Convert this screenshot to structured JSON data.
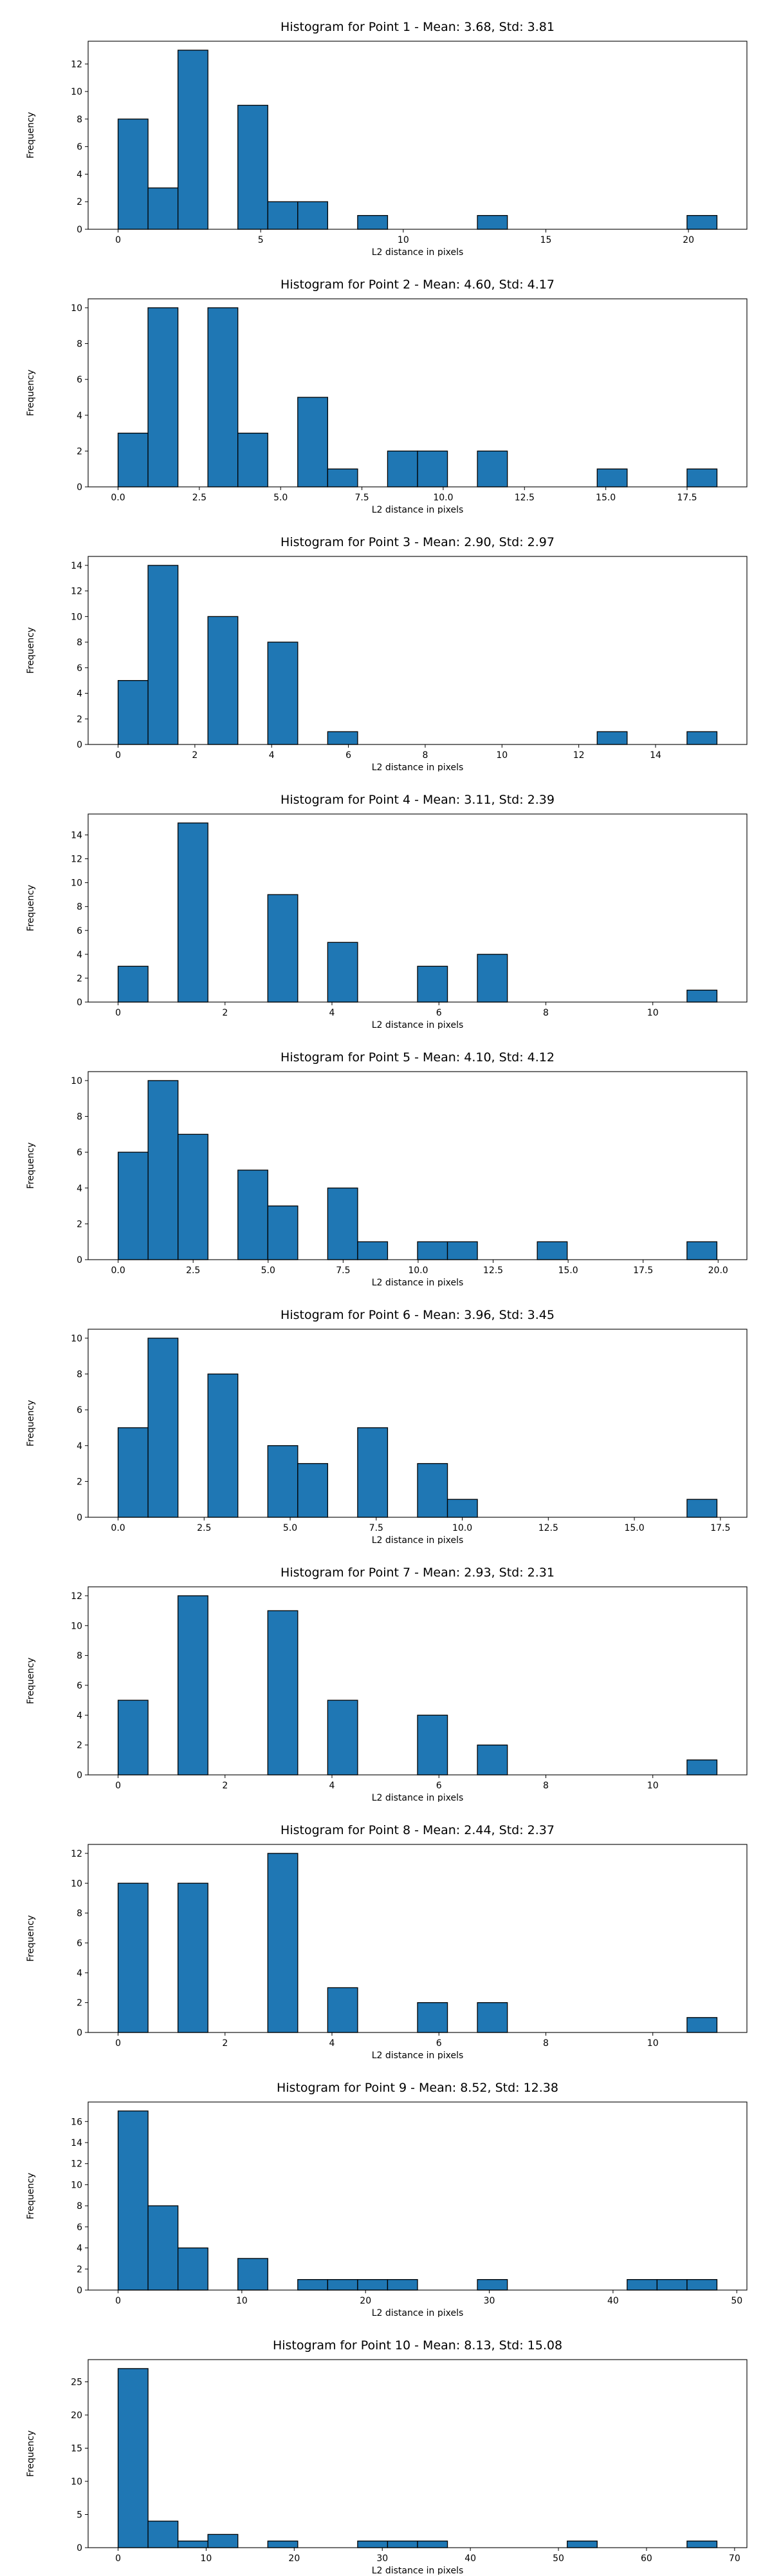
{
  "colors": {
    "bar_fill": "#1f77b4",
    "bar_edge": "#000000",
    "axes": "#000000",
    "background": "#ffffff"
  },
  "chart_data": [
    {
      "type": "bar",
      "title": "Histogram for Point 1 - Mean: 3.68, Std: 3.81",
      "xlabel": "L2 distance in pixels",
      "ylabel": "Frequency",
      "xlim": [
        -1.05,
        22.05
      ],
      "ylim": [
        0,
        13.65
      ],
      "xticks": [
        0,
        5,
        10,
        15,
        20
      ],
      "xticklabels": [
        "0",
        "5",
        "10",
        "15",
        "20"
      ],
      "yticks": [
        0,
        2,
        4,
        6,
        8,
        10,
        12
      ],
      "bins": {
        "start": 0.0,
        "width": 1.05
      },
      "counts": [
        8,
        3,
        13,
        0,
        9,
        2,
        2,
        0,
        1,
        0,
        0,
        0,
        1,
        0,
        0,
        0,
        0,
        0,
        0,
        1
      ]
    },
    {
      "type": "bar",
      "title": "Histogram for Point 2 - Mean: 4.60, Std: 4.17",
      "xlabel": "L2 distance in pixels",
      "ylabel": "Frequency",
      "xlim": [
        -0.92,
        19.34
      ],
      "ylim": [
        0,
        10.5
      ],
      "xticks": [
        0,
        2.5,
        5,
        7.5,
        10,
        12.5,
        15,
        17.5
      ],
      "xticklabels": [
        "0.0",
        "2.5",
        "5.0",
        "7.5",
        "10.0",
        "12.5",
        "15.0",
        "17.5"
      ],
      "yticks": [
        0,
        2,
        4,
        6,
        8,
        10
      ],
      "bins": {
        "start": 0.0,
        "width": 0.921
      },
      "counts": [
        3,
        10,
        0,
        10,
        3,
        0,
        5,
        1,
        0,
        2,
        2,
        0,
        2,
        0,
        0,
        0,
        1,
        0,
        0,
        1
      ]
    },
    {
      "type": "bar",
      "title": "Histogram for Point 3 - Mean: 2.90, Std: 2.97",
      "xlabel": "L2 distance in pixels",
      "ylabel": "Frequency",
      "xlim": [
        -0.78,
        16.38
      ],
      "ylim": [
        0,
        14.7
      ],
      "xticks": [
        0,
        2,
        4,
        6,
        8,
        10,
        12,
        14
      ],
      "xticklabels": [
        "0",
        "2",
        "4",
        "6",
        "8",
        "10",
        "12",
        "14"
      ],
      "yticks": [
        0,
        2,
        4,
        6,
        8,
        10,
        12,
        14
      ],
      "bins": {
        "start": 0.0,
        "width": 0.78
      },
      "counts": [
        5,
        14,
        0,
        10,
        0,
        8,
        0,
        1,
        0,
        0,
        0,
        0,
        0,
        0,
        0,
        0,
        1,
        0,
        0,
        1
      ]
    },
    {
      "type": "bar",
      "title": "Histogram for Point 4 - Mean: 3.11, Std: 2.39",
      "xlabel": "L2 distance in pixels",
      "ylabel": "Frequency",
      "xlim": [
        -0.56,
        11.76
      ],
      "ylim": [
        0,
        15.75
      ],
      "xticks": [
        0,
        2,
        4,
        6,
        8,
        10
      ],
      "xticklabels": [
        "0",
        "2",
        "4",
        "6",
        "8",
        "10"
      ],
      "yticks": [
        0,
        2,
        4,
        6,
        8,
        10,
        12,
        14
      ],
      "bins": {
        "start": 0.0,
        "width": 0.56
      },
      "counts": [
        3,
        0,
        15,
        0,
        0,
        9,
        0,
        5,
        0,
        0,
        3,
        0,
        4,
        0,
        0,
        0,
        0,
        0,
        0,
        1
      ]
    },
    {
      "type": "bar",
      "title": "Histogram for Point 5 - Mean: 4.10, Std: 4.12",
      "xlabel": "L2 distance in pixels",
      "ylabel": "Frequency",
      "xlim": [
        -1.0,
        20.96
      ],
      "ylim": [
        0,
        10.5
      ],
      "xticks": [
        0,
        2.5,
        5,
        7.5,
        10,
        12.5,
        15,
        17.5,
        20
      ],
      "xticklabels": [
        "0.0",
        "2.5",
        "5.0",
        "7.5",
        "10.0",
        "12.5",
        "15.0",
        "17.5",
        "20.0"
      ],
      "yticks": [
        0,
        2,
        4,
        6,
        8,
        10
      ],
      "bins": {
        "start": 0.0,
        "width": 0.998
      },
      "counts": [
        6,
        10,
        7,
        0,
        5,
        3,
        0,
        4,
        1,
        0,
        1,
        1,
        0,
        0,
        1,
        0,
        0,
        0,
        0,
        1
      ]
    },
    {
      "type": "bar",
      "title": "Histogram for Point 6 - Mean: 3.96, Std: 3.45",
      "xlabel": "L2 distance in pixels",
      "ylabel": "Frequency",
      "xlim": [
        -0.87,
        18.27
      ],
      "ylim": [
        0,
        10.5
      ],
      "xticks": [
        0,
        2.5,
        5,
        7.5,
        10,
        12.5,
        15,
        17.5
      ],
      "xticklabels": [
        "0.0",
        "2.5",
        "5.0",
        "7.5",
        "10.0",
        "12.5",
        "15.0",
        "17.5"
      ],
      "yticks": [
        0,
        2,
        4,
        6,
        8,
        10
      ],
      "bins": {
        "start": 0.0,
        "width": 0.87
      },
      "counts": [
        5,
        10,
        0,
        8,
        0,
        4,
        3,
        0,
        5,
        0,
        3,
        1,
        0,
        0,
        0,
        0,
        0,
        0,
        0,
        1
      ]
    },
    {
      "type": "bar",
      "title": "Histogram for Point 7 - Mean: 2.93, Std: 2.31",
      "xlabel": "L2 distance in pixels",
      "ylabel": "Frequency",
      "xlim": [
        -0.56,
        11.76
      ],
      "ylim": [
        0,
        12.6
      ],
      "xticks": [
        0,
        2,
        4,
        6,
        8,
        10
      ],
      "xticklabels": [
        "0",
        "2",
        "4",
        "6",
        "8",
        "10"
      ],
      "yticks": [
        0,
        2,
        4,
        6,
        8,
        10,
        12
      ],
      "bins": {
        "start": 0.0,
        "width": 0.56
      },
      "counts": [
        5,
        0,
        12,
        0,
        0,
        11,
        0,
        5,
        0,
        0,
        4,
        0,
        2,
        0,
        0,
        0,
        0,
        0,
        0,
        1
      ]
    },
    {
      "type": "bar",
      "title": "Histogram for Point 8 - Mean: 2.44, Std: 2.37",
      "xlabel": "L2 distance in pixels",
      "ylabel": "Frequency",
      "xlim": [
        -0.56,
        11.76
      ],
      "ylim": [
        0,
        12.6
      ],
      "xticks": [
        0,
        2,
        4,
        6,
        8,
        10
      ],
      "xticklabels": [
        "0",
        "2",
        "4",
        "6",
        "8",
        "10"
      ],
      "yticks": [
        0,
        2,
        4,
        6,
        8,
        10,
        12
      ],
      "bins": {
        "start": 0.0,
        "width": 0.56
      },
      "counts": [
        10,
        0,
        10,
        0,
        0,
        12,
        0,
        3,
        0,
        0,
        2,
        0,
        2,
        0,
        0,
        0,
        0,
        0,
        0,
        1
      ]
    },
    {
      "type": "bar",
      "title": "Histogram for Point 9 - Mean: 8.52, Std: 12.38",
      "xlabel": "L2 distance in pixels",
      "ylabel": "Frequency",
      "xlim": [
        -2.42,
        50.82
      ],
      "ylim": [
        0,
        17.85
      ],
      "xticks": [
        0,
        10,
        20,
        30,
        40,
        50
      ],
      "xticklabels": [
        "0",
        "10",
        "20",
        "30",
        "40",
        "50"
      ],
      "yticks": [
        0,
        2,
        4,
        6,
        8,
        10,
        12,
        14,
        16
      ],
      "bins": {
        "start": 0.0,
        "width": 2.42
      },
      "counts": [
        17,
        8,
        4,
        0,
        3,
        0,
        1,
        1,
        1,
        1,
        0,
        0,
        1,
        0,
        0,
        0,
        0,
        1,
        1,
        1
      ]
    },
    {
      "type": "bar",
      "title": "Histogram for Point 10 - Mean: 8.13, Std: 15.08",
      "xlabel": "L2 distance in pixels",
      "ylabel": "Frequency",
      "xlim": [
        -3.4,
        71.4
      ],
      "ylim": [
        0,
        28.35
      ],
      "xticks": [
        0,
        10,
        20,
        30,
        40,
        50,
        60,
        70
      ],
      "xticklabels": [
        "0",
        "10",
        "20",
        "30",
        "40",
        "50",
        "60",
        "70"
      ],
      "yticks": [
        0,
        5,
        10,
        15,
        20,
        25
      ],
      "bins": {
        "start": 0.0,
        "width": 3.4
      },
      "counts": [
        27,
        4,
        1,
        2,
        0,
        1,
        0,
        0,
        1,
        1,
        1,
        0,
        0,
        0,
        0,
        1,
        0,
        0,
        0,
        1
      ]
    }
  ]
}
